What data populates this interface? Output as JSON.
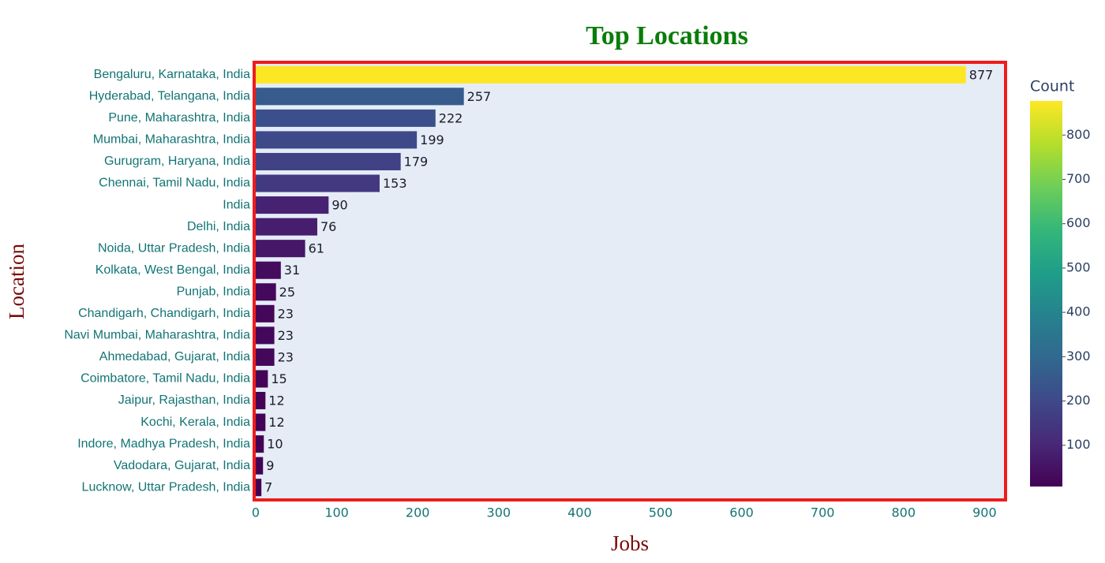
{
  "chart_data": {
    "type": "hbar",
    "title": "Top Locations",
    "x_label": "Jobs",
    "y_label": "Location",
    "categories": [
      "Bengaluru, Karnataka, India",
      "Hyderabad, Telangana, India",
      "Pune, Maharashtra, India",
      "Mumbai, Maharashtra, India",
      "Gurugram, Haryana, India",
      "Chennai, Tamil Nadu, India",
      "India",
      "Delhi, India",
      "Noida, Uttar Pradesh, India",
      "Kolkata, West Bengal, India",
      "Punjab, India",
      "Chandigarh, Chandigarh, India",
      "Navi Mumbai, Maharashtra, India",
      "Ahmedabad, Gujarat, India",
      "Coimbatore, Tamil Nadu, India",
      "Jaipur, Rajasthan, India",
      "Kochi, Kerala, India",
      "Indore, Madhya Pradesh, India",
      "Vadodara, Gujarat, India",
      "Lucknow, Uttar Pradesh, India"
    ],
    "values": [
      877,
      257,
      222,
      199,
      179,
      153,
      90,
      76,
      61,
      31,
      25,
      23,
      23,
      23,
      15,
      12,
      12,
      10,
      9,
      7
    ],
    "xlim": [
      0,
      924
    ],
    "xticks": [
      0,
      100,
      200,
      300,
      400,
      500,
      600,
      700,
      800,
      900
    ],
    "grid": false,
    "colorbar_title": "Count",
    "colorscale": [
      "#440154",
      "#482878",
      "#3e4989",
      "#31688e",
      "#26828e",
      "#1f9e89",
      "#35b779",
      "#6ece58",
      "#b5de2b",
      "#fde725"
    ],
    "clim": [
      7,
      877
    ],
    "cticks": [
      100,
      200,
      300,
      400,
      500,
      600,
      700,
      800
    ]
  }
}
